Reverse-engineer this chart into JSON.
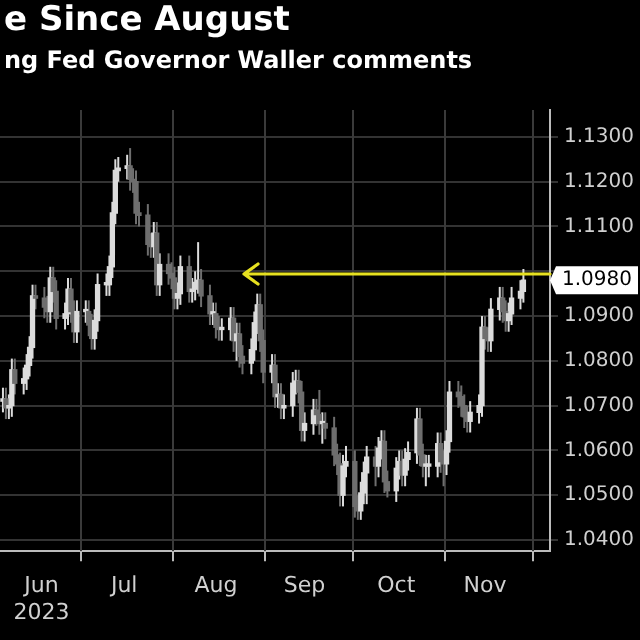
{
  "chart_data": {
    "type": "candlestick",
    "title": "e Since August",
    "subtitle": "ng Fed Governor Waller comments",
    "grid": true,
    "colors": [
      "#dcdcdc",
      "#6e6e6e",
      "#dcdcdc",
      "#dcdcdc",
      "#6e6e6e",
      "#dcdcdc",
      "#dcdcdc",
      "#dcdcdc",
      "#dcdcdc",
      "#6e6e6e",
      "#6e6e6e",
      "#6e6e6e",
      "#dcdcdc",
      "#6e6e6e",
      "#6e6e6e",
      "#dcdcdc",
      "#dcdcdc",
      "#6e6e6e",
      "#6e6e6e",
      "#dcdcdc",
      "#dcdcdc",
      "#6e6e6e",
      "#6e6e6e",
      "#dcdcdc",
      "#dcdcdc",
      "#dcdcdc",
      "#dcdcdc",
      "#dcdcdc",
      "#dcdcdc",
      "#dcdcdc",
      "#dcdcdc",
      "#6e6e6e",
      "#6e6e6e",
      "#6e6e6e",
      "#6e6e6e",
      "#6e6e6e",
      "#6e6e6e",
      "#dcdcdc",
      "#6e6e6e",
      "#dcdcdc",
      "#6e6e6e",
      "#6e6e6e",
      "#6e6e6e",
      "#dcdcdc",
      "#dcdcdc",
      "#6e6e6e",
      "#dcdcdc",
      "#dcdcdc",
      "#dcdcdc",
      "#6e6e6e",
      "#6e6e6e",
      "#dcdcdc",
      "#6e6e6e",
      "#6e6e6e",
      "#dcdcdc",
      "#dcdcdc",
      "#6e6e6e",
      "#dcdcdc",
      "#6e6e6e",
      "#6e6e6e",
      "#dcdcdc",
      "#dcdcdc",
      "#dcdcdc",
      "#6e6e6e",
      "#6e6e6e",
      "#dcdcdc",
      "#6e6e6e",
      "#dcdcdc",
      "#6e6e6e",
      "#dcdcdc",
      "#dcdcdc",
      "#dcdcdc",
      "#6e6e6e",
      "#6e6e6e",
      "#dcdcdc",
      "#dcdcdc",
      "#6e6e6e",
      "#6e6e6e",
      "#dcdcdc",
      "#6e6e6e",
      "#6e6e6e",
      "#6e6e6e",
      "#6e6e6e",
      "#dcdcdc",
      "#dcdcdc",
      "#6e6e6e",
      "#6e6e6e",
      "#dcdcdc",
      "#dcdcdc",
      "#dcdcdc",
      "#6e6e6e",
      "#dcdcdc",
      "#dcdcdc",
      "#6e6e6e",
      "#6e6e6e",
      "#dcdcdc",
      "#dcdcdc",
      "#6e6e6e",
      "#dcdcdc",
      "#dcdcdc",
      "#dcdcdc",
      "#6e6e6e",
      "#6e6e6e",
      "#dcdcdc",
      "#dcdcdc",
      "#dcdcdc",
      "#6e6e6e",
      "#6e6e6e",
      "#dcdcdc",
      "#dcdcdc",
      "#6e6e6e",
      "#6e6e6e",
      "#6e6e6e",
      "#6e6e6e",
      "#dcdcdc",
      "#dcdcdc",
      "#dcdcdc",
      "#6e6e6e",
      "#6e6e6e",
      "#dcdcdc",
      "#dcdcdc",
      "#6e6e6e",
      "#6e6e6e",
      "#dcdcdc",
      "#dcdcdc",
      "#dcdcdc",
      "#dcdcdc"
    ],
    "legend": false,
    "xlim": [
      "2023-06-04",
      "2023-12-07"
    ],
    "xticks": [
      {
        "value": "2023-06-18",
        "label": "Jun\n2023"
      },
      {
        "value": "2023-07-01",
        "label": null
      },
      {
        "value": "2023-07-16",
        "label": "Jul"
      },
      {
        "value": "2023-08-01",
        "label": null
      },
      {
        "value": "2023-08-16",
        "label": "Aug"
      },
      {
        "value": "2023-09-01",
        "label": null
      },
      {
        "value": "2023-09-15",
        "label": "Sep"
      },
      {
        "value": "2023-10-01",
        "label": null
      },
      {
        "value": "2023-10-16",
        "label": "Oct"
      },
      {
        "value": "2023-11-01",
        "label": null
      },
      {
        "value": "2023-11-15",
        "label": "Nov"
      },
      {
        "value": "2023-12-01",
        "label": null
      }
    ],
    "ylim": [
      1.0375,
      1.136
    ],
    "yticks": [
      {
        "value": 1.04,
        "label": "1.0400"
      },
      {
        "value": 1.05,
        "label": "1.0500"
      },
      {
        "value": 1.06,
        "label": "1.0600"
      },
      {
        "value": 1.07,
        "label": "1.0700"
      },
      {
        "value": 1.08,
        "label": "1.0800"
      },
      {
        "value": 1.09,
        "label": "1.0900"
      },
      {
        "value": 1.1,
        "label": null
      },
      {
        "value": 1.11,
        "label": "1.1100"
      },
      {
        "value": 1.12,
        "label": "1.1200"
      },
      {
        "value": 1.13,
        "label": "1.1300"
      }
    ],
    "annotations": [
      "1.0980"
    ],
    "x": [
      "2023-06-05",
      "2023-06-06",
      "2023-06-07",
      "2023-06-08",
      "2023-06-09",
      "2023-06-12",
      "2023-06-13",
      "2023-06-14",
      "2023-06-15",
      "2023-06-16",
      "2023-06-19",
      "2023-06-20",
      "2023-06-21",
      "2023-06-22",
      "2023-06-23",
      "2023-06-26",
      "2023-06-27",
      "2023-06-28",
      "2023-06-29",
      "2023-06-30",
      "2023-07-03",
      "2023-07-04",
      "2023-07-05",
      "2023-07-06",
      "2023-07-07",
      "2023-07-10",
      "2023-07-11",
      "2023-07-12",
      "2023-07-13",
      "2023-07-14",
      "2023-07-17",
      "2023-07-18",
      "2023-07-19",
      "2023-07-20",
      "2023-07-21",
      "2023-07-24",
      "2023-07-25",
      "2023-07-26",
      "2023-07-27",
      "2023-07-28",
      "2023-07-31",
      "2023-08-01",
      "2023-08-02",
      "2023-08-03",
      "2023-08-04",
      "2023-08-07",
      "2023-08-08",
      "2023-08-09",
      "2023-08-10",
      "2023-08-11",
      "2023-08-14",
      "2023-08-15",
      "2023-08-16",
      "2023-08-17",
      "2023-08-18",
      "2023-08-21",
      "2023-08-22",
      "2023-08-23",
      "2023-08-24",
      "2023-08-25",
      "2023-08-28",
      "2023-08-29",
      "2023-08-30",
      "2023-08-31",
      "2023-09-01",
      "2023-09-04",
      "2023-09-05",
      "2023-09-06",
      "2023-09-07",
      "2023-09-08",
      "2023-09-11",
      "2023-09-12",
      "2023-09-13",
      "2023-09-14",
      "2023-09-15",
      "2023-09-18",
      "2023-09-19",
      "2023-09-20",
      "2023-09-21",
      "2023-09-22",
      "2023-09-25",
      "2023-09-26",
      "2023-09-27",
      "2023-09-28",
      "2023-09-29",
      "2023-10-02",
      "2023-10-03",
      "2023-10-04",
      "2023-10-05",
      "2023-10-06",
      "2023-10-09",
      "2023-10-10",
      "2023-10-11",
      "2023-10-12",
      "2023-10-13",
      "2023-10-16",
      "2023-10-17",
      "2023-10-18",
      "2023-10-19",
      "2023-10-20",
      "2023-10-23",
      "2023-10-24",
      "2023-10-25",
      "2023-10-26",
      "2023-10-27",
      "2023-10-30",
      "2023-10-31",
      "2023-11-01",
      "2023-11-02",
      "2023-11-03",
      "2023-11-06",
      "2023-11-07",
      "2023-11-08",
      "2023-11-09",
      "2023-11-10",
      "2023-11-13",
      "2023-11-14",
      "2023-11-15",
      "2023-11-16",
      "2023-11-17",
      "2023-11-20",
      "2023-11-21",
      "2023-11-22",
      "2023-11-23",
      "2023-11-24",
      "2023-11-27",
      "2023-11-28"
    ],
    "ohlc": [
      [
        1.071,
        1.074,
        1.0685,
        1.0715
      ],
      [
        1.0715,
        1.074,
        1.067,
        1.0695
      ],
      [
        1.0695,
        1.0725,
        1.067,
        1.07
      ],
      [
        1.07,
        1.0805,
        1.0675,
        1.078
      ],
      [
        1.078,
        1.0805,
        1.0725,
        1.075
      ],
      [
        1.075,
        1.0785,
        1.0725,
        1.076
      ],
      [
        1.076,
        1.0815,
        1.0735,
        1.079
      ],
      [
        1.079,
        1.0855,
        1.0765,
        1.083
      ],
      [
        1.083,
        1.097,
        1.0805,
        1.0945
      ],
      [
        1.0945,
        1.097,
        1.0915,
        1.094
      ],
      [
        1.094,
        1.0965,
        1.0895,
        1.092
      ],
      [
        1.092,
        1.0945,
        1.0885,
        1.091
      ],
      [
        1.091,
        1.101,
        1.0885,
        1.0985
      ],
      [
        1.0985,
        1.101,
        1.093,
        1.0955
      ],
      [
        1.0955,
        1.098,
        1.087,
        1.0895
      ],
      [
        1.0895,
        1.093,
        1.087,
        1.0905
      ],
      [
        1.0905,
        1.0985,
        1.088,
        1.096
      ],
      [
        1.096,
        1.0985,
        1.0885,
        1.091
      ],
      [
        1.091,
        1.0935,
        1.084,
        1.0865
      ],
      [
        1.0865,
        1.0935,
        1.084,
        1.091
      ],
      [
        1.091,
        1.0935,
        1.0885,
        1.091
      ],
      [
        1.091,
        1.0935,
        1.0855,
        1.088
      ],
      [
        1.088,
        1.0905,
        1.0825,
        1.085
      ],
      [
        1.085,
        1.0915,
        1.0825,
        1.089
      ],
      [
        1.089,
        1.0995,
        1.0865,
        1.097
      ],
      [
        1.097,
        1.0995,
        1.0945,
        1.097
      ],
      [
        1.097,
        1.1035,
        1.0945,
        1.101
      ],
      [
        1.101,
        1.1155,
        1.0985,
        1.113
      ],
      [
        1.113,
        1.125,
        1.1105,
        1.1225
      ],
      [
        1.1225,
        1.1255,
        1.12,
        1.123
      ],
      [
        1.123,
        1.126,
        1.1205,
        1.1235
      ],
      [
        1.1235,
        1.1275,
        1.118,
        1.1205
      ],
      [
        1.1205,
        1.123,
        1.1175,
        1.12
      ],
      [
        1.12,
        1.1225,
        1.1105,
        1.113
      ],
      [
        1.113,
        1.1155,
        1.11,
        1.1125
      ],
      [
        1.1125,
        1.115,
        1.1035,
        1.106
      ],
      [
        1.106,
        1.1085,
        1.103,
        1.1055
      ],
      [
        1.1055,
        1.111,
        1.103,
        1.1085
      ],
      [
        1.1085,
        1.111,
        1.0945,
        1.097
      ],
      [
        1.097,
        1.104,
        1.0945,
        1.1015
      ],
      [
        1.1015,
        1.104,
        1.097,
        1.0995
      ],
      [
        1.0995,
        1.102,
        1.096,
        1.0985
      ],
      [
        1.0985,
        1.101,
        1.0915,
        1.094
      ],
      [
        1.094,
        1.0975,
        1.0915,
        1.095
      ],
      [
        1.095,
        1.1035,
        1.0925,
        1.101
      ],
      [
        1.101,
        1.1035,
        1.093,
        1.0955
      ],
      [
        1.0955,
        1.0985,
        1.093,
        1.096
      ],
      [
        1.096,
        1.1,
        1.0935,
        1.0975
      ],
      [
        1.0975,
        1.1065,
        1.095,
        1.098
      ],
      [
        1.098,
        1.1005,
        1.092,
        1.0945
      ],
      [
        1.0945,
        1.097,
        1.088,
        1.0905
      ],
      [
        1.0905,
        1.093,
        1.088,
        1.0905
      ],
      [
        1.0905,
        1.093,
        1.085,
        1.0875
      ],
      [
        1.0875,
        1.09,
        1.0845,
        1.087
      ],
      [
        1.087,
        1.0895,
        1.0845,
        1.087
      ],
      [
        1.087,
        1.092,
        1.0845,
        1.0895
      ],
      [
        1.0895,
        1.092,
        1.082,
        1.0845
      ],
      [
        1.0845,
        1.0885,
        1.08,
        1.086
      ],
      [
        1.086,
        1.0885,
        1.0785,
        1.081
      ],
      [
        1.081,
        1.0835,
        1.077,
        1.0795
      ],
      [
        1.0795,
        1.085,
        1.077,
        1.0825
      ],
      [
        1.0825,
        1.091,
        1.08,
        1.0885
      ],
      [
        1.0885,
        1.095,
        1.086,
        1.0925
      ],
      [
        1.0925,
        1.095,
        1.082,
        1.0845
      ],
      [
        1.0845,
        1.087,
        1.075,
        1.0775
      ],
      [
        1.0775,
        1.0815,
        1.075,
        1.079
      ],
      [
        1.079,
        1.0815,
        1.0695,
        1.072
      ],
      [
        1.072,
        1.075,
        1.0695,
        1.0725
      ],
      [
        1.0725,
        1.075,
        1.067,
        1.0695
      ],
      [
        1.0695,
        1.0725,
        1.067,
        1.07
      ],
      [
        1.07,
        1.0775,
        1.0675,
        1.075
      ],
      [
        1.075,
        1.078,
        1.0725,
        1.0755
      ],
      [
        1.0755,
        1.078,
        1.0705,
        1.073
      ],
      [
        1.073,
        1.0755,
        1.062,
        1.0645
      ],
      [
        1.0645,
        1.0685,
        1.062,
        1.066
      ],
      [
        1.066,
        1.0715,
        1.0635,
        1.069
      ],
      [
        1.069,
        1.0715,
        1.0655,
        1.068
      ],
      [
        1.068,
        1.0735,
        1.0635,
        1.066
      ],
      [
        1.066,
        1.0685,
        1.0615,
        1.066
      ],
      [
        1.066,
        1.0685,
        1.0625,
        1.065
      ],
      [
        1.065,
        1.0675,
        1.0565,
        1.059
      ],
      [
        1.059,
        1.0615,
        1.0545,
        1.057
      ],
      [
        1.057,
        1.0595,
        1.0475,
        1.05
      ],
      [
        1.05,
        1.059,
        1.0475,
        1.0565
      ],
      [
        1.0565,
        1.061,
        1.054,
        1.0575
      ],
      [
        1.0575,
        1.06,
        1.045,
        1.0475
      ],
      [
        1.0475,
        1.05,
        1.0445,
        1.0465
      ],
      [
        1.0465,
        1.053,
        1.0445,
        1.0505
      ],
      [
        1.0505,
        1.0575,
        1.048,
        1.055
      ],
      [
        1.055,
        1.061,
        1.048,
        1.0585
      ],
      [
        1.0585,
        1.061,
        1.052,
        1.0565
      ],
      [
        1.0565,
        1.063,
        1.054,
        1.0605
      ],
      [
        1.0605,
        1.0645,
        1.058,
        1.062
      ],
      [
        1.062,
        1.0645,
        1.0505,
        1.053
      ],
      [
        1.053,
        1.0555,
        1.0495,
        1.051
      ],
      [
        1.051,
        1.0585,
        1.0485,
        1.056
      ],
      [
        1.056,
        1.06,
        1.0535,
        1.0575
      ],
      [
        1.0575,
        1.06,
        1.052,
        1.0545
      ],
      [
        1.0545,
        1.0605,
        1.052,
        1.058
      ],
      [
        1.058,
        1.062,
        1.0555,
        1.0595
      ],
      [
        1.0595,
        1.0695,
        1.057,
        1.067
      ],
      [
        1.067,
        1.0695,
        1.0565,
        1.059
      ],
      [
        1.059,
        1.0615,
        1.054,
        1.0565
      ],
      [
        1.0565,
        1.059,
        1.052,
        1.0565
      ],
      [
        1.0565,
        1.059,
        1.054,
        1.0565
      ],
      [
        1.0565,
        1.064,
        1.054,
        1.0615
      ],
      [
        1.0615,
        1.064,
        1.055,
        1.0575
      ],
      [
        1.0575,
        1.06,
        1.052,
        1.057
      ],
      [
        1.057,
        1.0645,
        1.0545,
        1.062
      ],
      [
        1.062,
        1.0755,
        1.0595,
        1.073
      ],
      [
        1.073,
        1.0755,
        1.0695,
        1.072
      ],
      [
        1.072,
        1.0745,
        1.0675,
        1.07
      ],
      [
        1.07,
        1.0725,
        1.065,
        1.0675
      ],
      [
        1.0675,
        1.07,
        1.064,
        1.0665
      ],
      [
        1.0665,
        1.071,
        1.064,
        1.0685
      ],
      [
        1.0685,
        1.0725,
        1.066,
        1.07
      ],
      [
        1.07,
        1.09,
        1.0675,
        1.0875
      ],
      [
        1.0875,
        1.09,
        1.0825,
        1.085
      ],
      [
        1.085,
        1.0875,
        1.082,
        1.0845
      ],
      [
        1.0845,
        1.094,
        1.082,
        1.0915
      ],
      [
        1.0915,
        1.0965,
        1.089,
        1.094
      ],
      [
        1.094,
        1.0965,
        1.0885,
        1.091
      ],
      [
        1.091,
        1.0935,
        1.0865,
        1.089
      ],
      [
        1.089,
        1.093,
        1.0865,
        1.0905
      ],
      [
        1.0905,
        1.0965,
        1.088,
        1.094
      ],
      [
        1.094,
        1.098,
        1.0915,
        1.0955
      ],
      [
        1.0955,
        1.1005,
        1.093,
        1.098
      ]
    ]
  }
}
